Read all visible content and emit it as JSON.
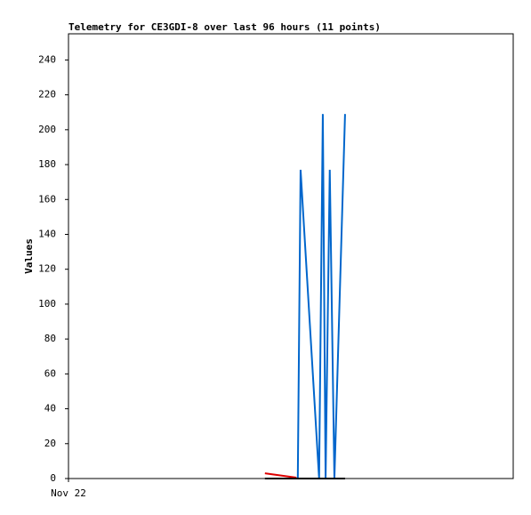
{
  "chart_data": {
    "type": "line",
    "title": "Telemetry for CE3GDI-8 over last 96 hours (11 points)",
    "y_label": "Values",
    "xlim": [
      0,
      96
    ],
    "xticks": [
      {
        "value": 0,
        "label": "Nov 22"
      }
    ],
    "ylim": [
      0,
      255
    ],
    "yticks": [
      0,
      20,
      40,
      60,
      80,
      100,
      120,
      140,
      160,
      180,
      200,
      220,
      240
    ],
    "series": [
      {
        "color": "#0066cc",
        "x": [
          49.5,
          50.1,
          54.1,
          54.9,
          55.5,
          56.4,
          57.4,
          59.7
        ],
        "values": [
          0,
          177,
          0,
          209,
          0,
          177,
          0,
          209
        ]
      },
      {
        "color": "#dd0000",
        "x": [
          42.4,
          49.2
        ],
        "values": [
          3,
          0.5
        ]
      },
      {
        "color": "#000000",
        "x": [
          42.4,
          59.7
        ],
        "values": [
          0,
          0
        ]
      }
    ]
  }
}
